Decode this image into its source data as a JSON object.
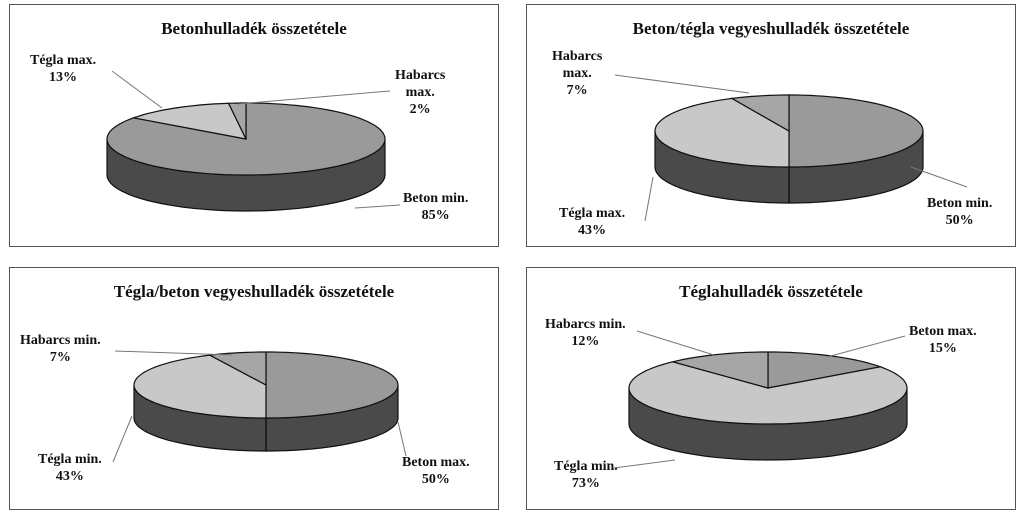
{
  "colors": {
    "beton": "#9a9a9a",
    "tegla": "#c8c8c8",
    "habarcs": "#a6a6a6",
    "side": "#4a4a4a",
    "edge": "#111111"
  },
  "chart_data": [
    {
      "type": "pie",
      "title": "Betonhulladék összetétele",
      "slices": [
        {
          "key": "beton",
          "name": "Beton min.",
          "value": 85,
          "label": "85%"
        },
        {
          "key": "tegla",
          "name": "Tégla max.",
          "value": 13,
          "label": "13%"
        },
        {
          "key": "habarcs",
          "name_lines": [
            "Habarcs",
            "max."
          ],
          "value": 2,
          "label": "2%"
        }
      ]
    },
    {
      "type": "pie",
      "title": "Beton/tégla vegyeshulladék összetétele",
      "slices": [
        {
          "key": "beton",
          "name": "Beton min.",
          "value": 50,
          "label": "50%"
        },
        {
          "key": "tegla",
          "name": "Tégla max.",
          "value": 43,
          "label": "43%"
        },
        {
          "key": "habarcs",
          "name_lines": [
            "Habarcs",
            "max."
          ],
          "value": 7,
          "label": "7%"
        }
      ]
    },
    {
      "type": "pie",
      "title": "Tégla/beton vegyeshulladék összetétele",
      "slices": [
        {
          "key": "beton",
          "name": "Beton max.",
          "value": 50,
          "label": "50%"
        },
        {
          "key": "tegla",
          "name": "Tégla min.",
          "value": 43,
          "label": "43%"
        },
        {
          "key": "habarcs",
          "name": "Habarcs min.",
          "value": 7,
          "label": "7%"
        }
      ]
    },
    {
      "type": "pie",
      "title": "Téglahulladék összetétele",
      "slices": [
        {
          "key": "beton",
          "name": "Beton max.",
          "value": 15,
          "label": "15%"
        },
        {
          "key": "tegla",
          "name": "Tégla min.",
          "value": 73,
          "label": "73%"
        },
        {
          "key": "habarcs",
          "name": "Habarcs min.",
          "value": 12,
          "label": "12%"
        }
      ]
    }
  ]
}
